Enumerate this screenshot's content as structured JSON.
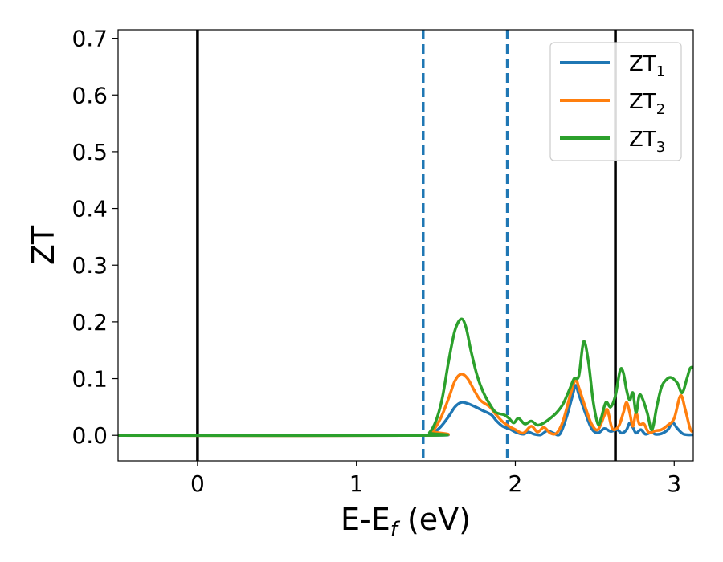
{
  "chart_data": {
    "type": "line",
    "title": "",
    "xlabel": "E-E",
    "xlabel_subscript": "f",
    "xlabel_suffix": " (eV)",
    "ylabel": "ZT",
    "xlim": [
      -0.5,
      3.12
    ],
    "ylim": [
      -0.045,
      0.715
    ],
    "xticks": [
      0,
      1,
      2,
      3
    ],
    "yticks": [
      0.0,
      0.1,
      0.2,
      0.3,
      0.4,
      0.5,
      0.6,
      0.7
    ],
    "xtick_labels": [
      "0",
      "1",
      "2",
      "3"
    ],
    "ytick_labels": [
      "0.0",
      "0.1",
      "0.2",
      "0.3",
      "0.4",
      "0.5",
      "0.6",
      "0.7"
    ],
    "grid": false,
    "legend_placement": "top-right",
    "vlines_solid": [
      0.0,
      2.63
    ],
    "vlines_dashed": [
      1.42,
      1.95
    ],
    "series": [
      {
        "name": "ZT",
        "sub": "1",
        "color": "#1f77b4",
        "points": [
          [
            -0.5,
            0
          ],
          [
            1.42,
            0
          ],
          [
            1.48,
            0.004
          ],
          [
            1.53,
            0.015
          ],
          [
            1.58,
            0.033
          ],
          [
            1.62,
            0.05
          ],
          [
            1.66,
            0.058
          ],
          [
            1.7,
            0.056
          ],
          [
            1.75,
            0.05
          ],
          [
            1.8,
            0.043
          ],
          [
            1.85,
            0.036
          ],
          [
            1.88,
            0.026
          ],
          [
            1.92,
            0.016
          ],
          [
            1.96,
            0.012
          ],
          [
            2.0,
            0.006
          ],
          [
            2.05,
            0.002
          ],
          [
            2.08,
            0.006
          ],
          [
            2.12,
            0.002
          ],
          [
            2.16,
            0.001
          ],
          [
            2.2,
            0.008
          ],
          [
            2.24,
            0.004
          ],
          [
            2.28,
            0.002
          ],
          [
            2.32,
            0.03
          ],
          [
            2.36,
            0.07
          ],
          [
            2.38,
            0.088
          ],
          [
            2.4,
            0.072
          ],
          [
            2.44,
            0.04
          ],
          [
            2.48,
            0.012
          ],
          [
            2.52,
            0.004
          ],
          [
            2.56,
            0.012
          ],
          [
            2.6,
            0.007
          ],
          [
            2.64,
            0.01
          ],
          [
            2.67,
            0.004
          ],
          [
            2.7,
            0.01
          ],
          [
            2.72,
            0.022
          ],
          [
            2.74,
            0.014
          ],
          [
            2.76,
            0.004
          ],
          [
            2.79,
            0.01
          ],
          [
            2.82,
            0.002
          ],
          [
            2.86,
            0.006
          ],
          [
            2.88,
            0.002
          ],
          [
            2.92,
            0.003
          ],
          [
            2.96,
            0.01
          ],
          [
            2.99,
            0.022
          ],
          [
            3.02,
            0.012
          ],
          [
            3.06,
            0.002
          ],
          [
            3.12,
            0.001
          ]
        ]
      },
      {
        "name": "ZT",
        "sub": "2",
        "color": "#ff7f0e",
        "points": [
          [
            -0.5,
            0
          ],
          [
            1.42,
            0
          ],
          [
            1.48,
            0.008
          ],
          [
            1.53,
            0.03
          ],
          [
            1.58,
            0.065
          ],
          [
            1.62,
            0.096
          ],
          [
            1.66,
            0.108
          ],
          [
            1.7,
            0.1
          ],
          [
            1.74,
            0.08
          ],
          [
            1.78,
            0.062
          ],
          [
            1.84,
            0.05
          ],
          [
            1.88,
            0.036
          ],
          [
            1.92,
            0.024
          ],
          [
            1.96,
            0.016
          ],
          [
            2.0,
            0.01
          ],
          [
            2.05,
            0.004
          ],
          [
            2.1,
            0.016
          ],
          [
            2.14,
            0.006
          ],
          [
            2.18,
            0.014
          ],
          [
            2.22,
            0.004
          ],
          [
            2.26,
            0.004
          ],
          [
            2.3,
            0.025
          ],
          [
            2.35,
            0.075
          ],
          [
            2.38,
            0.098
          ],
          [
            2.4,
            0.084
          ],
          [
            2.44,
            0.05
          ],
          [
            2.48,
            0.02
          ],
          [
            2.52,
            0.01
          ],
          [
            2.56,
            0.035
          ],
          [
            2.58,
            0.045
          ],
          [
            2.61,
            0.012
          ],
          [
            2.65,
            0.016
          ],
          [
            2.68,
            0.04
          ],
          [
            2.7,
            0.058
          ],
          [
            2.72,
            0.04
          ],
          [
            2.74,
            0.016
          ],
          [
            2.76,
            0.04
          ],
          [
            2.78,
            0.02
          ],
          [
            2.81,
            0.02
          ],
          [
            2.84,
            0.005
          ],
          [
            2.88,
            0.008
          ],
          [
            2.92,
            0.01
          ],
          [
            2.96,
            0.018
          ],
          [
            3.0,
            0.03
          ],
          [
            3.04,
            0.07
          ],
          [
            3.07,
            0.045
          ],
          [
            3.1,
            0.012
          ],
          [
            3.12,
            0.006
          ]
        ]
      },
      {
        "name": "ZT",
        "sub": "3",
        "color": "#2ca02c",
        "points": [
          [
            -0.5,
            0
          ],
          [
            1.42,
            0
          ],
          [
            1.46,
            0.005
          ],
          [
            1.5,
            0.025
          ],
          [
            1.54,
            0.065
          ],
          [
            1.58,
            0.13
          ],
          [
            1.62,
            0.185
          ],
          [
            1.66,
            0.205
          ],
          [
            1.69,
            0.19
          ],
          [
            1.72,
            0.15
          ],
          [
            1.76,
            0.105
          ],
          [
            1.8,
            0.075
          ],
          [
            1.85,
            0.05
          ],
          [
            1.88,
            0.04
          ],
          [
            1.93,
            0.036
          ],
          [
            1.96,
            0.03
          ],
          [
            1.99,
            0.022
          ],
          [
            2.02,
            0.03
          ],
          [
            2.06,
            0.02
          ],
          [
            2.1,
            0.025
          ],
          [
            2.14,
            0.018
          ],
          [
            2.18,
            0.022
          ],
          [
            2.22,
            0.03
          ],
          [
            2.26,
            0.04
          ],
          [
            2.3,
            0.055
          ],
          [
            2.34,
            0.08
          ],
          [
            2.37,
            0.1
          ],
          [
            2.4,
            0.105
          ],
          [
            2.43,
            0.165
          ],
          [
            2.46,
            0.13
          ],
          [
            2.49,
            0.06
          ],
          [
            2.52,
            0.02
          ],
          [
            2.54,
            0.03
          ],
          [
            2.57,
            0.058
          ],
          [
            2.6,
            0.05
          ],
          [
            2.63,
            0.07
          ],
          [
            2.66,
            0.115
          ],
          [
            2.68,
            0.11
          ],
          [
            2.7,
            0.08
          ],
          [
            2.72,
            0.062
          ],
          [
            2.74,
            0.075
          ],
          [
            2.76,
            0.04
          ],
          [
            2.78,
            0.07
          ],
          [
            2.8,
            0.065
          ],
          [
            2.83,
            0.04
          ],
          [
            2.86,
            0.01
          ],
          [
            2.89,
            0.05
          ],
          [
            2.92,
            0.085
          ],
          [
            2.95,
            0.098
          ],
          [
            2.98,
            0.102
          ],
          [
            3.02,
            0.092
          ],
          [
            3.05,
            0.075
          ],
          [
            3.08,
            0.1
          ],
          [
            3.1,
            0.118
          ],
          [
            3.12,
            0.12
          ]
        ]
      }
    ]
  }
}
